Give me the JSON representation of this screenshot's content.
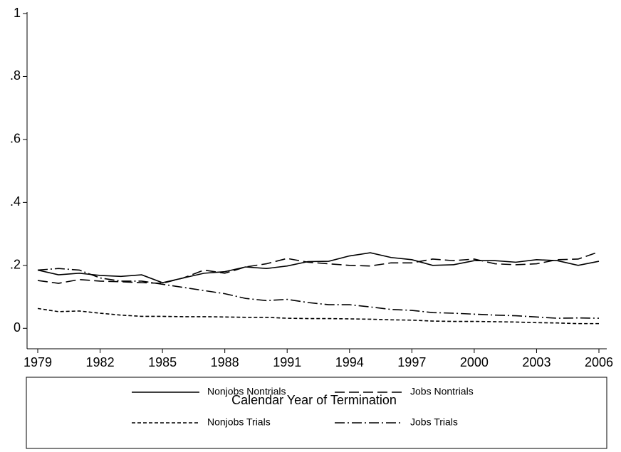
{
  "chart_data": {
    "type": "line",
    "x_label": "Calendar Year of Termination",
    "x": [
      1979,
      1980,
      1981,
      1982,
      1983,
      1984,
      1985,
      1986,
      1987,
      1988,
      1989,
      1990,
      1991,
      1992,
      1993,
      1994,
      1995,
      1996,
      1997,
      1998,
      1999,
      2000,
      2001,
      2002,
      2003,
      2004,
      2005,
      2006
    ],
    "series": [
      {
        "name": "Nonjobs Nontrials",
        "color": "#000000",
        "dash": "none",
        "values": [
          0.185,
          0.17,
          0.175,
          0.168,
          0.165,
          0.17,
          0.145,
          0.16,
          0.175,
          0.18,
          0.195,
          0.19,
          0.198,
          0.212,
          0.213,
          0.23,
          0.24,
          0.225,
          0.218,
          0.2,
          0.202,
          0.215,
          0.215,
          0.21,
          0.218,
          0.215,
          0.2,
          0.213
        ]
      },
      {
        "name": "Jobs Nontrials",
        "color": "#000000",
        "dash": "14 6",
        "values": [
          0.152,
          0.143,
          0.155,
          0.15,
          0.148,
          0.145,
          0.143,
          0.16,
          0.185,
          0.175,
          0.195,
          0.205,
          0.222,
          0.21,
          0.205,
          0.2,
          0.198,
          0.208,
          0.208,
          0.22,
          0.215,
          0.22,
          0.205,
          0.202,
          0.205,
          0.218,
          0.22,
          0.243
        ]
      },
      {
        "name": "Nonjobs Trials",
        "color": "#000000",
        "dash": "5 3",
        "values": [
          0.063,
          0.053,
          0.055,
          0.048,
          0.042,
          0.038,
          0.038,
          0.037,
          0.037,
          0.036,
          0.035,
          0.035,
          0.032,
          0.031,
          0.031,
          0.03,
          0.029,
          0.027,
          0.026,
          0.023,
          0.022,
          0.022,
          0.021,
          0.02,
          0.018,
          0.017,
          0.015,
          0.015
        ]
      },
      {
        "name": "Jobs Trials",
        "color": "#000000",
        "dash": "14 4 2 4",
        "values": [
          0.185,
          0.19,
          0.185,
          0.16,
          0.15,
          0.15,
          0.14,
          0.13,
          0.12,
          0.11,
          0.095,
          0.088,
          0.092,
          0.082,
          0.075,
          0.075,
          0.068,
          0.06,
          0.057,
          0.05,
          0.048,
          0.045,
          0.042,
          0.04,
          0.036,
          0.032,
          0.033,
          0.032
        ]
      }
    ],
    "xlim": [
      1979,
      2006
    ],
    "xticks": [
      1979,
      1982,
      1985,
      1988,
      1991,
      1994,
      1997,
      2000,
      2003,
      2006
    ],
    "ylim": [
      -0.065,
      1
    ],
    "yticks": [
      0,
      {
        "value": 0.2,
        "label": ".2"
      },
      {
        "value": 0.4,
        "label": ".4"
      },
      {
        "value": 0.6,
        "label": ".6"
      },
      {
        "value": 0.8,
        "label": ".8"
      },
      1
    ],
    "legend": "bottom"
  }
}
